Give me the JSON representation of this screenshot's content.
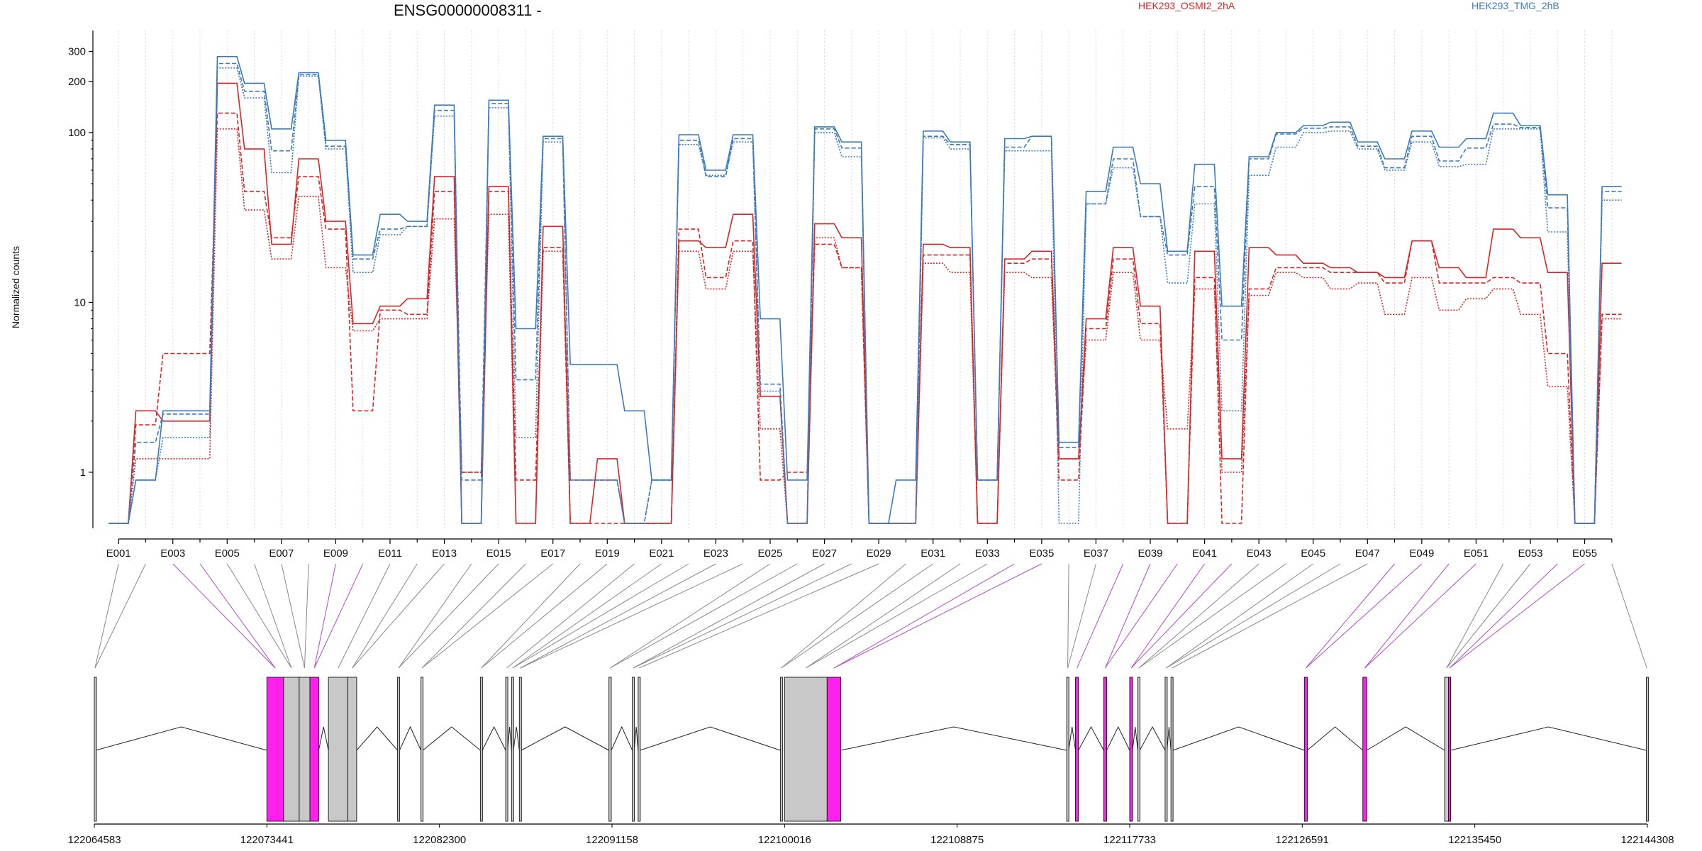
{
  "chart_data": {
    "type": "line",
    "title": "ENSG00000008311 -",
    "ylabel": "Normalized counts",
    "xlabel": "",
    "y_scale": "log",
    "ylim": [
      0.5,
      380
    ],
    "y_ticks": [
      1,
      10,
      100,
      200,
      300
    ],
    "y_tick_labels": [
      "1",
      "10",
      "100",
      "200",
      "300"
    ],
    "grid": "vertical dashed at each exon",
    "legend_placement": "top",
    "exon_tick_labels": [
      "E001",
      "E003",
      "E005",
      "E007",
      "E009",
      "E011",
      "E013",
      "E015",
      "E017",
      "E019",
      "E021",
      "E023",
      "E025",
      "E027",
      "E029",
      "E031",
      "E033",
      "E035",
      "E037",
      "E039",
      "E041",
      "E043",
      "E045",
      "E047",
      "E049",
      "E051",
      "E053",
      "E055"
    ],
    "exon_ids": [
      "E001",
      "E002",
      "E003",
      "E004",
      "E005",
      "E006",
      "E007",
      "E008",
      "E009",
      "E010",
      "E011",
      "E012",
      "E013",
      "E014",
      "E015",
      "E016",
      "E017",
      "E018",
      "E019",
      "E020",
      "E021",
      "E022",
      "E023",
      "E024",
      "E025",
      "E026",
      "E027",
      "E028",
      "E029",
      "E030",
      "E031",
      "E032",
      "E033",
      "E034",
      "E035",
      "E036",
      "E037",
      "E038",
      "E039",
      "E040",
      "E041",
      "E042",
      "E043",
      "E044",
      "E045",
      "E046",
      "E047",
      "E048",
      "E049",
      "E050",
      "E051",
      "E052",
      "E053",
      "E054",
      "E055",
      "E056"
    ],
    "series": [
      {
        "name": "HEK293_OSMI2_2hA",
        "group": "HEK293_OSMI2_2hA",
        "color": "#d62728",
        "dash": "solid",
        "values": [
          0.5,
          2.3,
          2.0,
          2.0,
          195,
          80,
          22,
          70,
          30,
          7.5,
          9.5,
          10.5,
          55,
          0.5,
          48,
          0.5,
          28,
          0.5,
          1.2,
          0.5,
          0.5,
          23,
          21,
          33,
          2.8,
          0.5,
          29,
          24,
          0.5,
          0.5,
          22,
          21,
          0.5,
          18,
          20,
          1.2,
          8,
          21,
          9.5,
          0.5,
          20,
          1.2,
          21,
          19,
          17,
          16,
          15,
          14,
          23,
          16,
          14,
          27,
          24,
          15,
          0.5,
          17
        ]
      },
      {
        "name": "HEK293_OSMI2_2hA",
        "group": "HEK293_OSMI2_2hA",
        "color": "#d62728",
        "dash": "dashed",
        "values": [
          0.5,
          1.9,
          5.0,
          5.0,
          130,
          45,
          24,
          55,
          27,
          2.3,
          9.0,
          8.5,
          45,
          1.0,
          45,
          0.9,
          21,
          0.5,
          0.5,
          0.5,
          0.5,
          27,
          14,
          23,
          0.9,
          1.0,
          22,
          16,
          0.5,
          0.5,
          19,
          19,
          0.5,
          17,
          18,
          0.9,
          7,
          18,
          7.5,
          0.5,
          14,
          0.5,
          12,
          16,
          16,
          15,
          15,
          13,
          23,
          13,
          13,
          14,
          13,
          5,
          0.5,
          8.5
        ]
      },
      {
        "name": "HEK293_OSMI2_2hA",
        "group": "HEK293_OSMI2_2hA",
        "color": "#d62728",
        "dash": "dotted",
        "values": [
          0.5,
          1.2,
          1.2,
          1.2,
          105,
          35,
          18,
          42,
          16,
          6.8,
          8.0,
          8.0,
          31,
          1.0,
          33,
          0.5,
          20,
          0.9,
          0.9,
          0.5,
          0.5,
          20,
          12,
          20,
          1.8,
          0.5,
          24,
          16,
          0.5,
          0.5,
          17,
          15,
          0.5,
          15,
          14,
          1.2,
          6,
          15,
          6,
          1.8,
          12,
          1.0,
          11,
          15,
          14,
          12,
          13,
          8.5,
          14,
          9,
          10.5,
          12,
          8.5,
          3.2,
          0.5,
          8
        ]
      },
      {
        "name": "HEK293_TMG_2hB",
        "group": "HEK293_TMG_2hB",
        "color": "#3b7bbd",
        "dash": "solid",
        "values": [
          0.5,
          0.9,
          2.3,
          2.3,
          280,
          195,
          105,
          225,
          90,
          19,
          33,
          30,
          145,
          0.5,
          155,
          7,
          95,
          4.3,
          4.3,
          2.3,
          0.9,
          97,
          60,
          97,
          8,
          0.9,
          108,
          88,
          0.5,
          0.9,
          102,
          88,
          0.9,
          92,
          95,
          1.5,
          45,
          82,
          50,
          20,
          65,
          9.5,
          72,
          100,
          110,
          115,
          88,
          70,
          102,
          82,
          92,
          130,
          110,
          43,
          0.5,
          48
        ]
      },
      {
        "name": "HEK293_TMG_2hB",
        "group": "HEK293_TMG_2hB",
        "color": "#3b7bbd",
        "dash": "dashed",
        "values": [
          0.5,
          1.5,
          2.2,
          2.2,
          255,
          175,
          78,
          220,
          83,
          18,
          27,
          28,
          135,
          0.9,
          148,
          3.5,
          92,
          0.9,
          0.9,
          0.5,
          0.9,
          90,
          55,
          92,
          3.3,
          0.5,
          105,
          81,
          0.5,
          0.5,
          95,
          85,
          0.9,
          82,
          95,
          1.4,
          38,
          70,
          32,
          19,
          48,
          6,
          70,
          98,
          106,
          108,
          83,
          62,
          95,
          68,
          81,
          112,
          107,
          36,
          0.5,
          45
        ]
      },
      {
        "name": "HEK293_TMG_2hB",
        "group": "HEK293_TMG_2hB",
        "color": "#3b7bbd",
        "dash": "dotted",
        "values": [
          0.5,
          0.9,
          1.6,
          1.6,
          240,
          160,
          58,
          215,
          80,
          15,
          25,
          28,
          125,
          0.5,
          140,
          1.6,
          88,
          0.9,
          0.9,
          0.5,
          0.9,
          85,
          56,
          88,
          3.0,
          0.5,
          100,
          72,
          0.5,
          0.5,
          93,
          80,
          0.9,
          78,
          78,
          0.5,
          38,
          62,
          32,
          13,
          38,
          2.3,
          56,
          82,
          100,
          102,
          80,
          60,
          88,
          63,
          65,
          105,
          105,
          26,
          0.5,
          40
        ]
      }
    ],
    "legend": [
      {
        "label": "HEK293_OSMI2_2hA",
        "color": "#d62728"
      },
      {
        "label": "HEK293_TMG_2hB",
        "color": "#3b7bbd"
      }
    ],
    "genomic_axis": {
      "tick_labels": [
        "122064583",
        "122073441",
        "122082300",
        "122091158",
        "122100016",
        "122108875",
        "122117733",
        "122126591",
        "122135450",
        "122144308"
      ],
      "range": [
        122064583,
        122144308
      ]
    },
    "gene_model": {
      "exons": [
        [
          122064583,
          122064650,
          false
        ],
        [
          122073441,
          122074300,
          true
        ],
        [
          122074300,
          122075100,
          false
        ],
        [
          122075100,
          122075650,
          false
        ],
        [
          122075650,
          122076100,
          true
        ],
        [
          122076600,
          122077600,
          false
        ],
        [
          122077600,
          122078050,
          false
        ],
        [
          122080150,
          122080250,
          false
        ],
        [
          122081350,
          122081450,
          false
        ],
        [
          122084400,
          122084500,
          false
        ],
        [
          122085700,
          122085800,
          false
        ],
        [
          122086000,
          122086100,
          false
        ],
        [
          122086400,
          122086500,
          false
        ],
        [
          122091000,
          122091120,
          false
        ],
        [
          122092200,
          122092300,
          false
        ],
        [
          122092500,
          122092600,
          false
        ],
        [
          122099800,
          122099900,
          false
        ],
        [
          122100016,
          122102200,
          false
        ],
        [
          122102200,
          122102900,
          true
        ],
        [
          122114500,
          122114600,
          false
        ],
        [
          122114950,
          122115100,
          true
        ],
        [
          122116400,
          122116550,
          true
        ],
        [
          122117733,
          122117880,
          true
        ],
        [
          122118150,
          122118250,
          false
        ],
        [
          122119550,
          122119650,
          false
        ],
        [
          122119850,
          122119950,
          false
        ],
        [
          122126700,
          122126850,
          true
        ],
        [
          122129700,
          122129900,
          true
        ],
        [
          122133900,
          122134100,
          false
        ],
        [
          122134100,
          122134200,
          true
        ],
        [
          122144250,
          122144308,
          false
        ]
      ],
      "colors": {
        "exon_fill": "#c8c8c8",
        "highlight_fill": "#ff1fee",
        "mapping_line": "#888888",
        "mapping_highlight": "#b04cc4"
      }
    }
  }
}
